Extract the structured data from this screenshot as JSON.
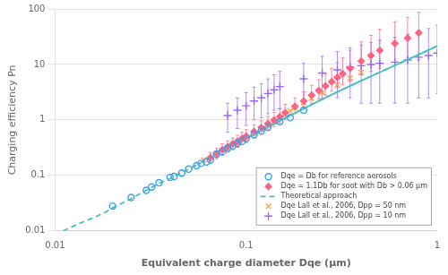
{
  "chart_data": {
    "type": "scatter",
    "xlabel": "Equivalent charge diameter Dqe (μm)",
    "ylabel": "Charging efficiency Pn",
    "log": true,
    "xlim": [
      0.01,
      1.0
    ],
    "ylim": [
      0.01,
      100
    ],
    "xticks": [
      0.01,
      0.1,
      1
    ],
    "yticks": [
      0.01,
      0.1,
      1,
      10,
      100
    ],
    "grid": "y",
    "legend": "lower right",
    "series": [
      {
        "name": "Dqe = Db for reference aerosols",
        "type": "scatter",
        "marker": "open_circle",
        "x": [
          0.02,
          0.025,
          0.03,
          0.032,
          0.035,
          0.04,
          0.042,
          0.046,
          0.05,
          0.055,
          0.058,
          0.062,
          0.065,
          0.07,
          0.075,
          0.08,
          0.085,
          0.09,
          0.095,
          0.1,
          0.11,
          0.12,
          0.13,
          0.15,
          0.17,
          0.2
        ],
        "values": [
          0.028,
          0.04,
          0.054,
          0.062,
          0.074,
          0.092,
          0.096,
          0.11,
          0.13,
          0.15,
          0.165,
          0.175,
          0.19,
          0.24,
          0.27,
          0.31,
          0.34,
          0.38,
          0.41,
          0.46,
          0.54,
          0.63,
          0.73,
          0.93,
          1.1,
          1.5
        ]
      },
      {
        "name": "Dqe = 1.1Db for soot with Db > 0.06 μm",
        "type": "scatter",
        "marker": "diamond",
        "x": [
          0.065,
          0.07,
          0.075,
          0.08,
          0.085,
          0.09,
          0.095,
          0.1,
          0.11,
          0.12,
          0.13,
          0.14,
          0.15,
          0.16,
          0.18,
          0.2,
          0.22,
          0.24,
          0.26,
          0.28,
          0.3,
          0.32,
          0.35,
          0.4,
          0.45,
          0.5,
          0.6,
          0.7,
          0.8
        ],
        "values": [
          0.21,
          0.25,
          0.29,
          0.33,
          0.37,
          0.41,
          0.46,
          0.51,
          0.62,
          0.73,
          0.86,
          1.0,
          1.15,
          1.35,
          1.75,
          2.2,
          2.8,
          3.4,
          4.1,
          4.9,
          5.8,
          6.8,
          8.5,
          11.5,
          14.5,
          18.0,
          24.0,
          30.0,
          37.0
        ],
        "error_low": [
          0.04,
          0.05,
          0.06,
          0.07,
          0.08,
          0.09,
          0.1,
          0.12,
          0.14,
          0.17,
          0.2,
          0.24,
          0.28,
          0.33,
          0.45,
          0.6,
          0.8,
          1.0,
          1.3,
          1.6,
          2.0,
          2.5,
          3.5,
          5.0,
          7.0,
          9.5,
          13.0,
          18.0,
          25.0
        ],
        "error_high": [
          0.05,
          0.06,
          0.08,
          0.09,
          0.1,
          0.12,
          0.14,
          0.16,
          0.2,
          0.24,
          0.3,
          0.36,
          0.44,
          0.55,
          0.75,
          1.0,
          1.4,
          1.9,
          2.7,
          3.6,
          5.0,
          6.5,
          9.5,
          14.0,
          19.0,
          25.0,
          35.0,
          40.0,
          50.0
        ]
      },
      {
        "name": "Theoretical approach",
        "type": "line",
        "line_style": "dashed",
        "x": [
          0.011,
          0.013,
          0.015,
          0.018,
          0.02,
          0.025,
          0.03,
          0.035,
          0.04,
          0.05,
          0.06,
          0.07,
          0.08,
          0.09,
          0.1,
          0.12,
          0.14,
          0.16,
          0.18,
          0.2,
          0.25,
          0.3,
          0.35,
          0.4,
          0.5,
          0.6,
          0.7,
          0.8,
          0.9,
          1.0
        ],
        "values": [
          0.01,
          0.013,
          0.016,
          0.021,
          0.026,
          0.038,
          0.054,
          0.072,
          0.088,
          0.13,
          0.18,
          0.24,
          0.31,
          0.38,
          0.46,
          0.64,
          0.85,
          1.08,
          1.33,
          1.6,
          2.35,
          3.2,
          4.1,
          5.1,
          7.2,
          9.6,
          12.2,
          15.1,
          18.2,
          21.5
        ]
      },
      {
        "type": "line",
        "line_style": "solid",
        "x": [
          0.1,
          0.12,
          0.14,
          0.16,
          0.18,
          0.2,
          0.25,
          0.3,
          0.35,
          0.4,
          0.5,
          0.6,
          0.7,
          0.8,
          0.9,
          1.0
        ],
        "values": [
          0.46,
          0.64,
          0.85,
          1.08,
          1.33,
          1.6,
          2.35,
          3.2,
          4.1,
          5.1,
          7.2,
          9.6,
          12.2,
          15.1,
          18.2,
          21.5
        ]
      },
      {
        "name": "Dqe Lall et al., 2006, Dpp = 50 nm",
        "type": "scatter",
        "marker": "x",
        "x": [
          0.06,
          0.07,
          0.08,
          0.09,
          0.1,
          0.11,
          0.12,
          0.13,
          0.14,
          0.15,
          0.16,
          0.17,
          0.18,
          0.2,
          0.22,
          0.25,
          0.3,
          0.35,
          0.4
        ],
        "values": [
          0.19,
          0.25,
          0.31,
          0.38,
          0.46,
          0.56,
          0.67,
          0.79,
          0.93,
          1.08,
          1.25,
          1.45,
          1.65,
          2.05,
          2.45,
          3.1,
          4.3,
          5.7,
          7.2
        ]
      },
      {
        "name": "Dqe Lall et al., 2006, Dpp = 10 nm",
        "type": "scatter",
        "marker": "plus",
        "x": [
          0.08,
          0.09,
          0.1,
          0.11,
          0.12,
          0.13,
          0.14,
          0.15,
          0.2,
          0.25,
          0.3,
          0.35,
          0.4,
          0.45,
          0.5,
          0.6,
          0.7,
          0.8,
          0.9,
          1.0
        ],
        "values": [
          1.2,
          1.5,
          1.8,
          2.2,
          2.5,
          3.0,
          3.5,
          4.0,
          5.5,
          7.0,
          8.0,
          9.0,
          9.5,
          10.0,
          10.5,
          11.0,
          12.0,
          13.5,
          14.5,
          16.0
        ],
        "error_low": [
          0.6,
          0.8,
          1.0,
          1.2,
          1.4,
          1.7,
          2.0,
          2.4,
          3.5,
          4.5,
          5.5,
          6.5,
          7.5,
          8.0,
          8.5,
          9.0,
          10.0,
          11.0,
          12.0,
          13.0
        ],
        "error_high": [
          0.8,
          1.0,
          1.3,
          1.7,
          2.0,
          2.5,
          3.0,
          3.5,
          5.0,
          7.0,
          9.0,
          11.0,
          13.0,
          15.0,
          17.0,
          20.0,
          23.0,
          27.0,
          30.0,
          35.0
        ]
      }
    ]
  }
}
